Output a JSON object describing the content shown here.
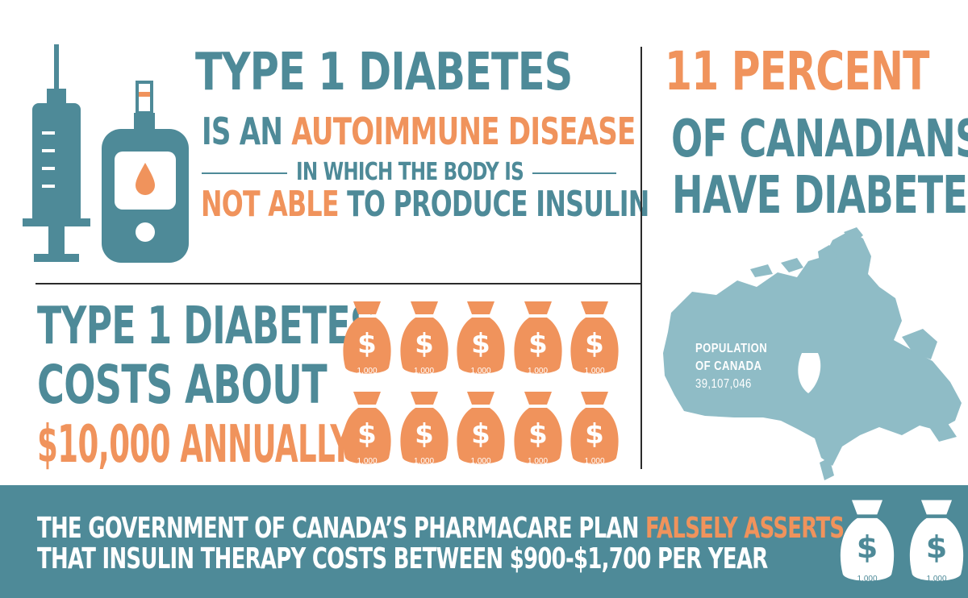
{
  "headline": {
    "line1": "TYPE 1 DIABETES",
    "line2_prefix": "IS AN",
    "line2_highlight": "AUTOIMMUNE DISEASE",
    "line3": "IN WHICH THE BODY IS",
    "line4_highlight": "NOT ABLE",
    "line4_suffix": "TO PRODUCE INSULIN"
  },
  "stat": {
    "percent": "11 PERCENT",
    "line2": "OF CANADIANS",
    "line3": "HAVE DIABETES"
  },
  "cost": {
    "line1": "TYPE 1 DIABETES",
    "line2": "COSTS ABOUT",
    "line3": "$10,000 ANNUALLY",
    "bag_value": "1,000",
    "bag_count": 10
  },
  "map": {
    "label1": "POPULATION",
    "label2": "OF CANADA",
    "population": "39,107,046"
  },
  "banner": {
    "line1_prefix": "THE GOVERNMENT OF CANADA’S PHARMACARE PLAN",
    "line1_highlight": "FALSELY ASSERTS",
    "line2": "THAT INSULIN THERAPY COSTS  BETWEEN $900-$1,700 PER YEAR",
    "bag_value": "1,000"
  },
  "colors": {
    "teal": "#4e8a98",
    "orange": "#f0935c",
    "map": "#8fbcc6"
  },
  "icons": [
    "syringe-icon",
    "glucose-meter-icon",
    "money-bag-icon",
    "canada-map"
  ]
}
